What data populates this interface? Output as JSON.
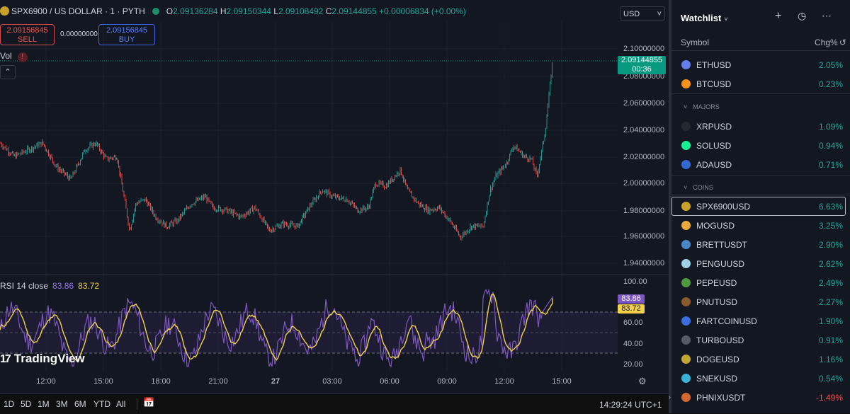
{
  "symbol": {
    "title": "SPX6900 / US DOLLAR · 1 · PYTH",
    "ohlc": [
      {
        "k": "O",
        "v": "2.09136284"
      },
      {
        "k": "H",
        "v": "2.09150344"
      },
      {
        "k": "L",
        "v": "2.09108492"
      },
      {
        "k": "C",
        "v": "2.09144855"
      }
    ],
    "change": "+0.00006834 (+0.00%)"
  },
  "trade": {
    "sell_price": "2.09156845",
    "sell_label": "SELL",
    "spread": "0.00000000",
    "buy_price": "2.09156845",
    "buy_label": "BUY"
  },
  "vol_label": "Vol",
  "currency": "USD",
  "price_axis": [
    "2.10000000",
    "2.08000000",
    "2.06000000",
    "2.04000000",
    "2.02000000",
    "2.00000000",
    "1.98000000",
    "1.96000000",
    "1.94000000"
  ],
  "last_price": {
    "value": "2.09144855",
    "countdown": "00:36"
  },
  "rsi": {
    "label": "RSI 14 close",
    "rsi_value": "83.86",
    "ma_value": "83.72",
    "axis": [
      "100.00",
      "60.00",
      "40.00",
      "20.00"
    ]
  },
  "time_axis": [
    "12:00",
    "15:00",
    "18:00",
    "21:00",
    "27",
    "03:00",
    "06:00",
    "09:00",
    "12:00",
    "15:00"
  ],
  "brand": "TradingView",
  "bottom": {
    "timeframes": [
      "1D",
      "5D",
      "1M",
      "3M",
      "6M",
      "YTD",
      "All"
    ],
    "clock": "14:29:24 UTC+1"
  },
  "watchlist": {
    "title": "Watchlist",
    "col_symbol": "Symbol",
    "col_chg": "Chg%",
    "sections": {
      "majors": "MAJORS",
      "coins": "COINS"
    },
    "items": [
      {
        "name": "ETHUSD",
        "chg": "2.05%",
        "dir": "pos",
        "color": "#627eea"
      },
      {
        "name": "BTCUSD",
        "chg": "0.23%",
        "dir": "pos",
        "color": "#f7931a"
      },
      {
        "name": "XRPUSD",
        "chg": "1.09%",
        "dir": "pos",
        "color": "#23292f"
      },
      {
        "name": "SOLUSD",
        "chg": "0.94%",
        "dir": "pos",
        "color": "#14f195"
      },
      {
        "name": "ADAUSD",
        "chg": "0.71%",
        "dir": "pos",
        "color": "#3468d1"
      },
      {
        "name": "SPX6900USD",
        "chg": "6.63%",
        "dir": "pos",
        "color": "#c9a227"
      },
      {
        "name": "MOGUSD",
        "chg": "3.25%",
        "dir": "pos",
        "color": "#e8a93a"
      },
      {
        "name": "BRETTUSDT",
        "chg": "2.90%",
        "dir": "pos",
        "color": "#4a86c8"
      },
      {
        "name": "PENGUUSD",
        "chg": "2.62%",
        "dir": "pos",
        "color": "#9fd0e6"
      },
      {
        "name": "PEPEUSD",
        "chg": "2.49%",
        "dir": "pos",
        "color": "#4c9a3d"
      },
      {
        "name": "PNUTUSD",
        "chg": "2.27%",
        "dir": "pos",
        "color": "#8b5a2b"
      },
      {
        "name": "FARTCOINUSD",
        "chg": "1.90%",
        "dir": "pos",
        "color": "#3b6fe0"
      },
      {
        "name": "TURBOUSD",
        "chg": "0.91%",
        "dir": "pos",
        "color": "#555a66"
      },
      {
        "name": "DOGEUSD",
        "chg": "1.16%",
        "dir": "pos",
        "color": "#c2a633"
      },
      {
        "name": "SNEKUSD",
        "chg": "0.54%",
        "dir": "pos",
        "color": "#3ab0d8"
      },
      {
        "name": "PHNIXUSDT",
        "chg": "-1.49%",
        "dir": "neg",
        "color": "#d06a2e"
      }
    ]
  },
  "colors": {
    "up": "#26a69a",
    "down": "#ef5350",
    "rsi": "#7e57c2",
    "rsi_ma": "#f2d04a",
    "bg": "#131722"
  }
}
